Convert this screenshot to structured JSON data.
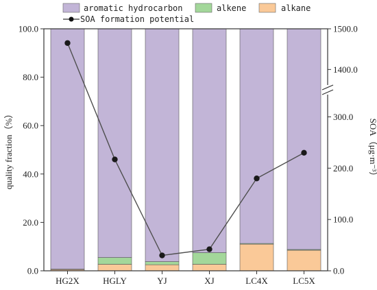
{
  "chart_data": {
    "type": "bar",
    "stacked": true,
    "categories": [
      "HG2X",
      "HGLY",
      "YJ",
      "XJ",
      "LC4X",
      "LC5X"
    ],
    "series": [
      {
        "name": "alkane",
        "color": "#FAC998",
        "values": [
          0.5,
          2.7,
          2.5,
          2.7,
          11.0,
          8.5
        ]
      },
      {
        "name": "alkene",
        "color": "#A3D79A",
        "values": [
          0.2,
          2.8,
          1.3,
          4.8,
          0.3,
          0.3
        ]
      },
      {
        "name": "aromatic hydrocarbon",
        "color": "#C2B5D7",
        "values": [
          99.3,
          94.5,
          96.2,
          92.5,
          88.7,
          91.2
        ]
      }
    ],
    "line_series": {
      "name": "SOA formation potential",
      "color": "#4f4f4f",
      "values": [
        1465,
        217,
        30,
        42,
        180,
        230
      ]
    },
    "left_axis": {
      "label": "quality fraction（%）",
      "ylim": [
        0,
        100
      ],
      "ticks": [
        "0.0",
        "20.0",
        "40.0",
        "60.0",
        "80.0",
        "100.0"
      ]
    },
    "right_axis": {
      "label": "SOA（μg·m⁻³）",
      "broken": true,
      "lower_range": [
        0,
        350
      ],
      "upper_range": [
        1350,
        1500
      ],
      "ticks": [
        "0.0",
        "100.0",
        "200.0",
        "300.0",
        "1400.0",
        "1500.0"
      ]
    },
    "legend": {
      "placement": "top",
      "items": [
        "aromatic hydrocarbon",
        "alkene",
        "alkane",
        "SOA formation potential"
      ]
    },
    "grid": false
  }
}
